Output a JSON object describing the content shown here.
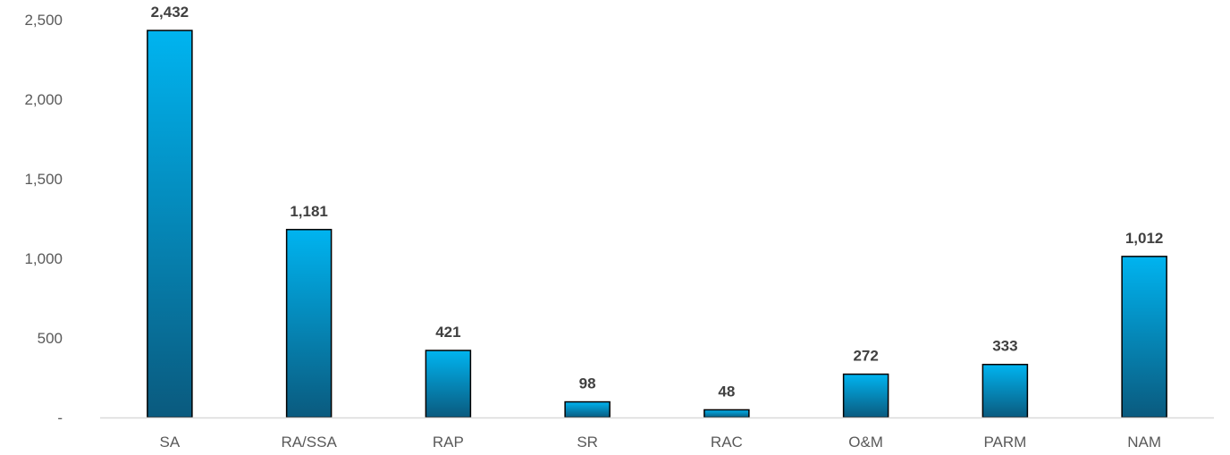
{
  "chart_data": {
    "type": "bar",
    "title": "",
    "xlabel": "",
    "ylabel": "",
    "categories": [
      "SA",
      "RA/SSA",
      "RAP",
      "SR",
      "RAC",
      "O&M",
      "PARM",
      "NAM"
    ],
    "values": [
      2432,
      1181,
      421,
      98,
      48,
      272,
      333,
      1012
    ],
    "data_labels": [
      "2,432",
      "1,181",
      "421",
      "98",
      "48",
      "272",
      "333",
      "1,012"
    ],
    "ylim": [
      0,
      2500
    ],
    "yticks": [
      0,
      500,
      1000,
      1500,
      2000,
      2500
    ],
    "ytick_labels": [
      "-",
      "500",
      "1,000",
      "1,500",
      "2,000",
      "2,500"
    ],
    "grid": false,
    "legend": "none",
    "colors": {
      "bar_top": "#00B4F0",
      "bar_bottom": "#0A5A7E",
      "bar_outline": "#000000",
      "axis": "#D9D9D9"
    }
  }
}
